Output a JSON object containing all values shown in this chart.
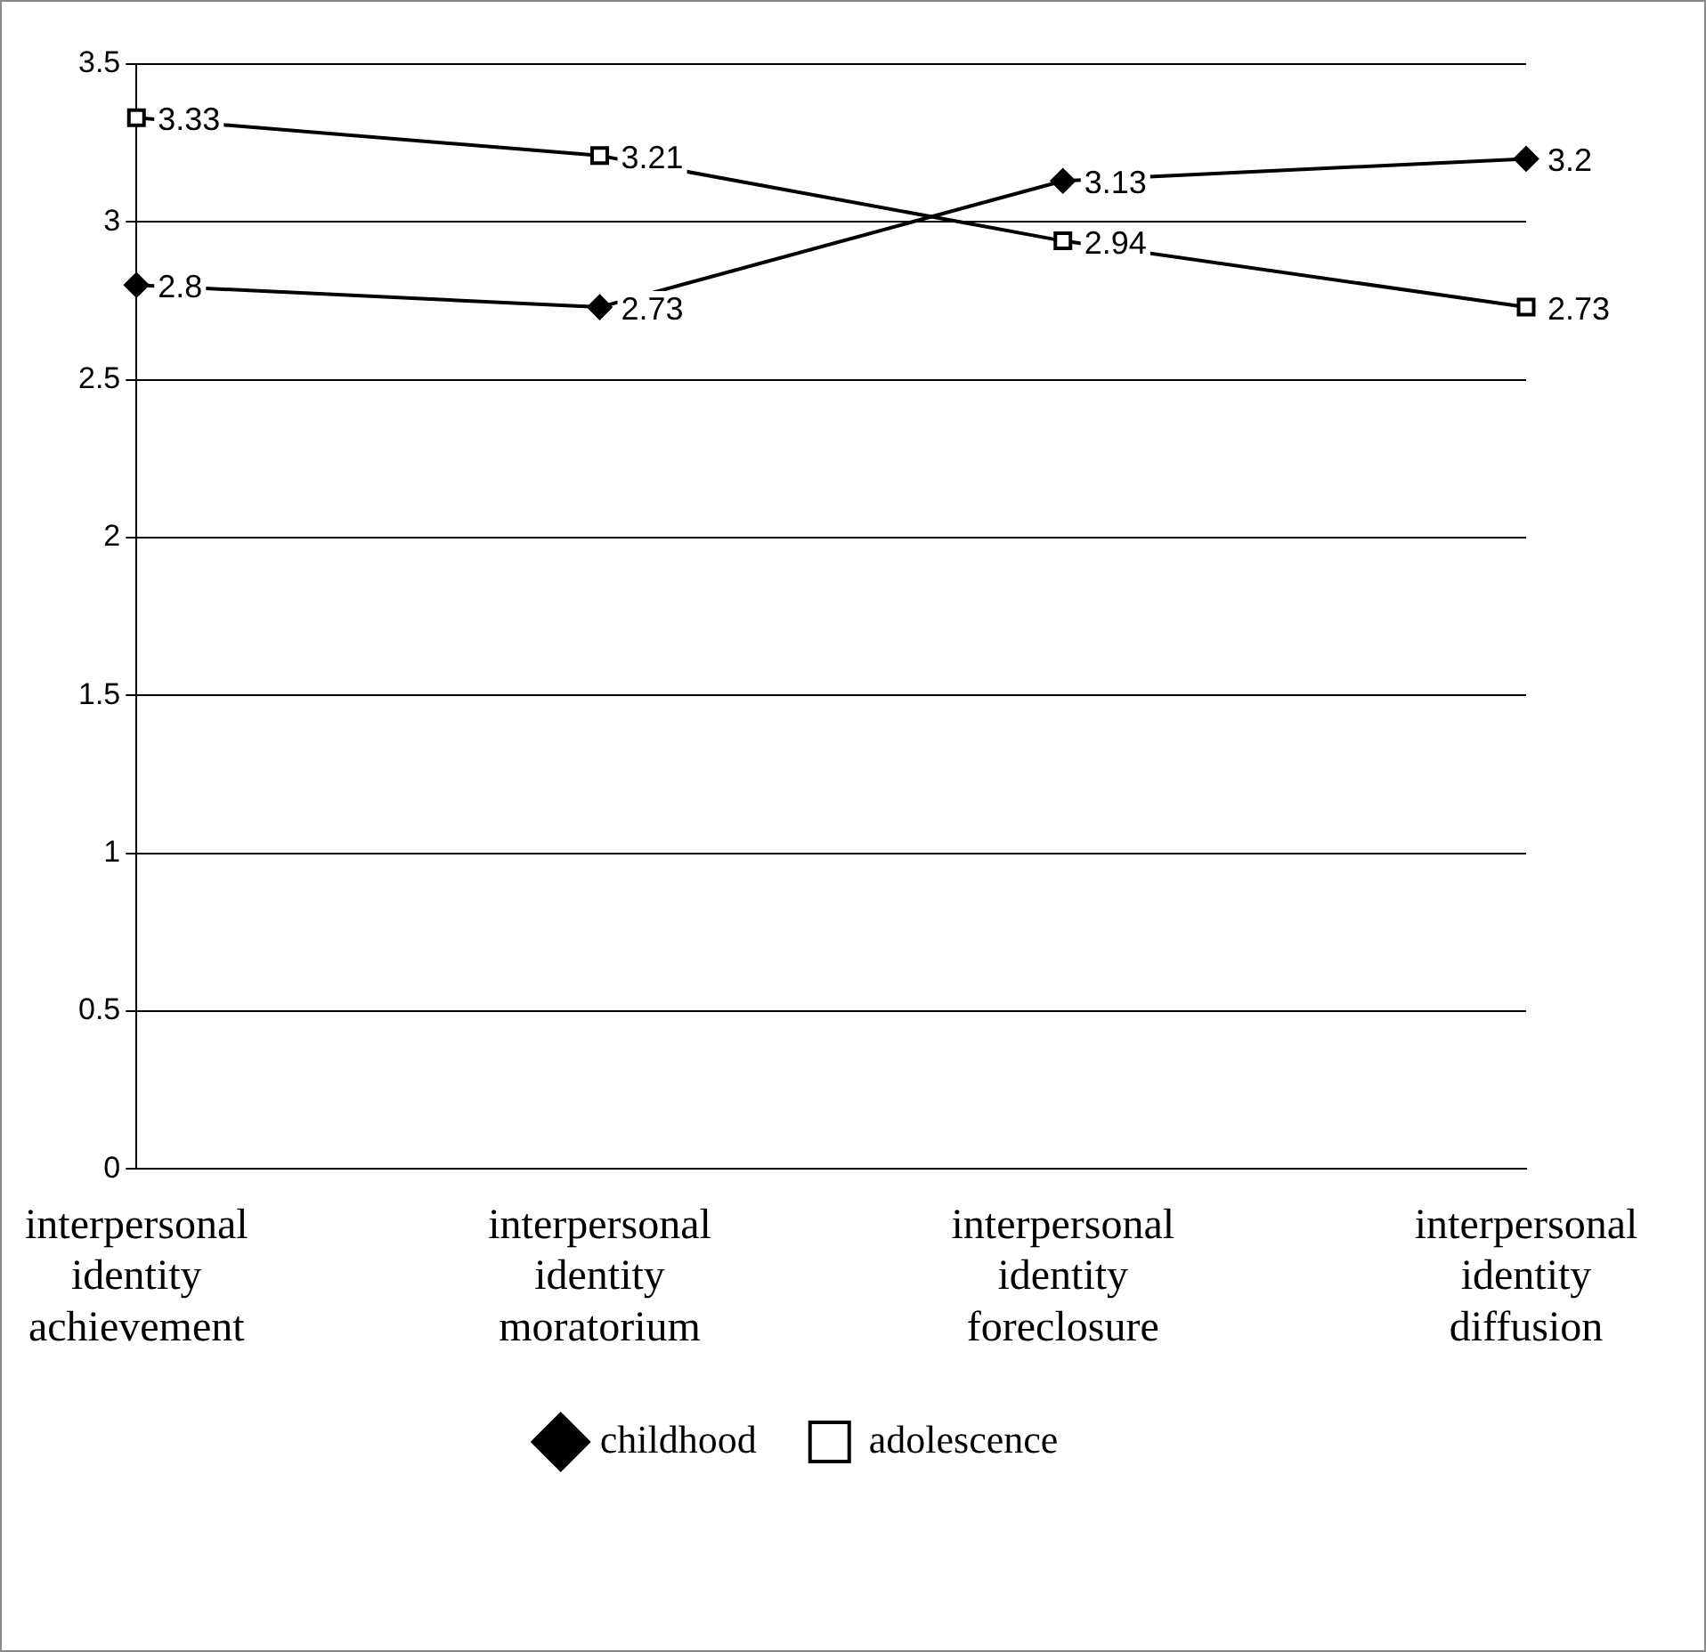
{
  "chart_data": {
    "type": "line",
    "categories": [
      "interpersonal identity achievement",
      "interpersonal identity moratorium",
      "interpersonal identity foreclosure",
      "interpersonal identity diffusion"
    ],
    "series": [
      {
        "name": "childhood",
        "color": "#000000",
        "marker": "diamond",
        "values": [
          2.8,
          2.73,
          3.13,
          3.2
        ]
      },
      {
        "name": "adolescence",
        "color": "#000000",
        "marker": "square",
        "values": [
          3.33,
          3.21,
          2.94,
          2.73
        ]
      }
    ],
    "ylim": [
      0,
      3.5
    ],
    "yticks": [
      0,
      0.5,
      1,
      1.5,
      2,
      2.5,
      3,
      3.5
    ],
    "grid": "y",
    "legend": "bottom",
    "data_labels": true,
    "line_style": "solid"
  }
}
